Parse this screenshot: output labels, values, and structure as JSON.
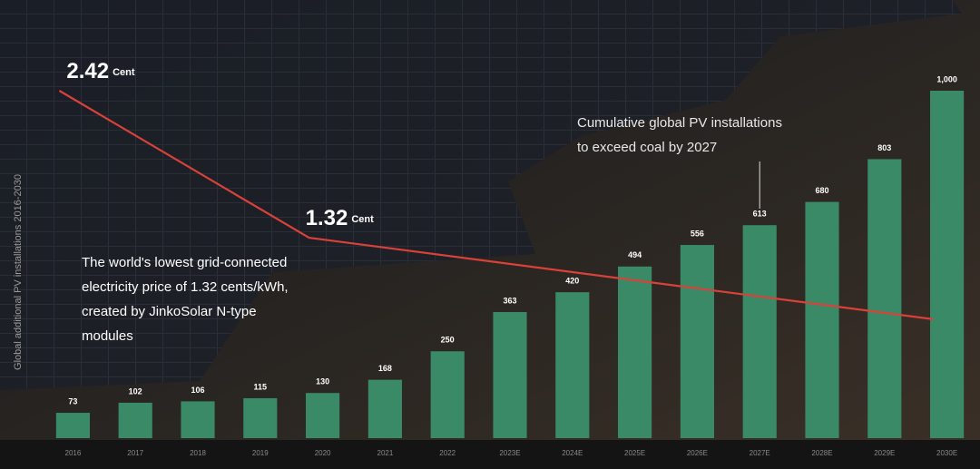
{
  "chart_data": {
    "type": "bar",
    "y_axis_label": "Global additional PV installations 2016-2030",
    "categories": [
      "2016",
      "2017",
      "2018",
      "2019",
      "2020",
      "2021",
      "2022",
      "2023E",
      "2024E",
      "2025E",
      "2026E",
      "2027E",
      "2028E",
      "2029E",
      "2030E"
    ],
    "values": [
      73,
      102,
      106,
      115,
      130,
      168,
      250,
      363,
      420,
      494,
      556,
      613,
      680,
      803,
      1000
    ],
    "value_labels": [
      "73",
      "102",
      "106",
      "115",
      "130",
      "168",
      "250",
      "363",
      "420",
      "494",
      "556",
      "613",
      "680",
      "803",
      "1,000"
    ],
    "color": "#3a8a68",
    "ylim": [
      0,
      1000
    ],
    "price_line": {
      "color": "#d9413a",
      "y2lim": [
        -0.18,
        2.42
      ],
      "points": [
        {
          "x": "2016",
          "value": 2.42,
          "unit": "Cent"
        },
        {
          "x": "2020",
          "value": 1.32,
          "unit": "Cent"
        },
        {
          "x": "2030E",
          "value": 0.71
        }
      ]
    },
    "annotations": [
      {
        "x": "2027E",
        "lines": [
          "Cumulative global PV installations",
          "to exceed coal by 2027"
        ]
      },
      {
        "lines": [
          "The world's lowest grid-connected",
          "electricity price of 1.32 cents/kWh,",
          "created by JinkoSolar N-type",
          "modules"
        ]
      }
    ]
  }
}
